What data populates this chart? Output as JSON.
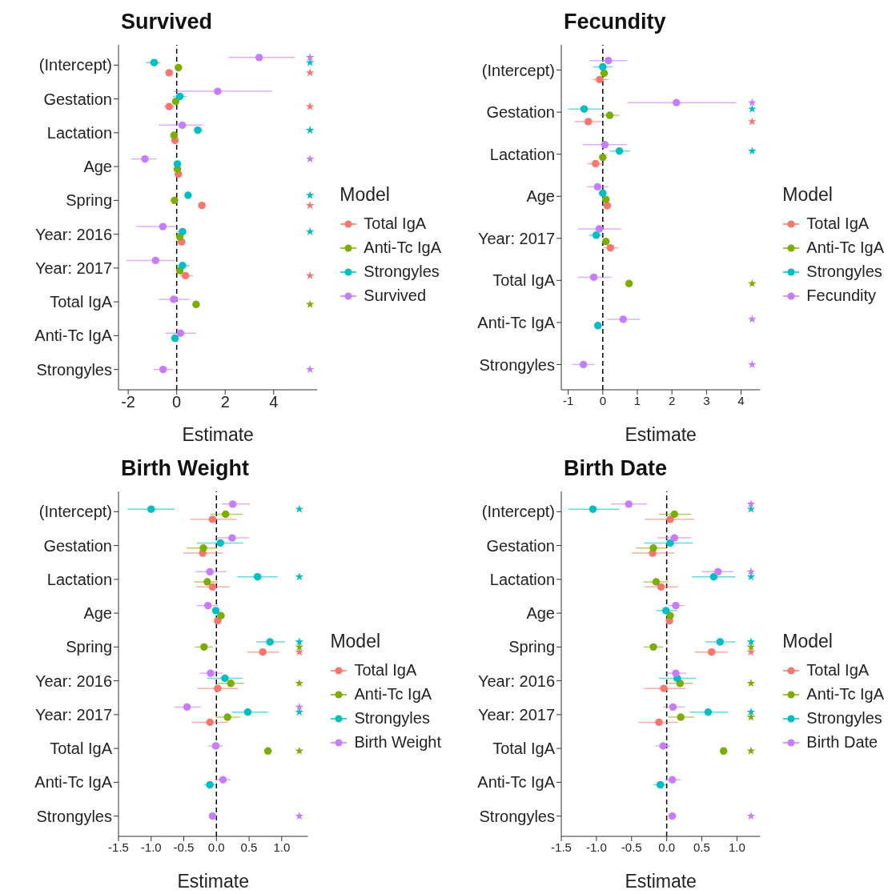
{
  "chart_data": [
    {
      "type": "scatter",
      "title": "Survived",
      "orientation": "horizontal",
      "xlabel": "Estimate",
      "legend_title": "Model",
      "legend": "right",
      "marker": "circle",
      "grid": false,
      "categories": [
        "(Intercept)",
        "Gestation",
        "Lactation",
        "Age",
        "Spring",
        "Year: 2016",
        "Year: 2017",
        "Total IgA",
        "Anti-Tc IgA",
        "Strongyles"
      ],
      "xlim": [
        -2.4,
        5.8
      ],
      "xticks": [
        -2,
        0,
        2,
        4
      ],
      "ref_lines": [
        {
          "axis": "x",
          "value": 0,
          "color": "#000000",
          "line_style": "dashed"
        }
      ],
      "series": [
        {
          "name": "Total IgA",
          "color": "#f8766d",
          "values": [
            -0.31,
            -0.31,
            -0.07,
            0.07,
            1.04,
            0.2,
            0.36,
            null,
            null,
            null
          ],
          "errors": [
            null,
            [
              -0.53,
              -0.07
            ],
            null,
            null,
            null,
            null,
            [
              0.13,
              0.67
            ],
            null,
            null,
            null
          ]
        },
        {
          "name": "Anti-Tc IgA",
          "color": "#7cae00",
          "values": [
            0.07,
            -0.04,
            -0.11,
            0.03,
            -0.09,
            0.13,
            0.13,
            0.8,
            null,
            null
          ]
        },
        {
          "name": "Strongyles",
          "color": "#00bfc4",
          "values": [
            -0.93,
            0.13,
            0.87,
            0.03,
            0.47,
            0.24,
            0.24,
            null,
            -0.07,
            null
          ],
          "errors": [
            [
              -1.27,
              -0.67
            ],
            [
              -0.16,
              0.4
            ],
            [
              0.73,
              1.07
            ],
            null,
            null,
            [
              0,
              0.4
            ],
            [
              0,
              0.53
            ],
            null,
            null,
            null
          ]
        },
        {
          "name": "Survived",
          "color": "#c77cff",
          "values": [
            3.4,
            1.69,
            0.23,
            -1.31,
            null,
            -0.57,
            -0.87,
            -0.13,
            0.16,
            -0.56
          ],
          "errors": [
            [
              2.13,
              4.87
            ],
            [
              -0.13,
              3.93
            ],
            [
              -0.73,
              1.09
            ],
            [
              -1.87,
              -0.83
            ],
            null,
            [
              -1.67,
              0
            ],
            [
              -2.07,
              -0.07
            ],
            [
              -0.73,
              0.53
            ],
            [
              -0.47,
              0.8
            ],
            [
              -0.96,
              -0.17
            ]
          ]
        },
        {
          "marker": "star",
          "color": "#f8766d",
          "values": [
            5.5,
            5.5,
            null,
            null,
            5.5,
            null,
            5.5,
            null,
            null,
            null
          ]
        },
        {
          "marker": "star",
          "color": "#7cae00",
          "values": [
            null,
            null,
            null,
            null,
            null,
            null,
            null,
            5.5,
            null,
            null
          ]
        },
        {
          "marker": "star",
          "color": "#00bfc4",
          "values": [
            5.5,
            null,
            5.5,
            null,
            5.5,
            5.5,
            null,
            null,
            null,
            null
          ]
        },
        {
          "marker": "star",
          "color": "#c77cff",
          "values": [
            5.5,
            null,
            null,
            5.5,
            null,
            null,
            null,
            null,
            null,
            5.5
          ]
        }
      ]
    },
    {
      "type": "scatter",
      "title": "Fecundity",
      "orientation": "horizontal",
      "xlabel": "Estimate",
      "legend_title": "Model",
      "legend": "right",
      "marker": "circle",
      "grid": false,
      "categories": [
        "(Intercept)",
        "Gestation",
        "Lactation",
        "Age",
        "Year: 2017",
        "Total IgA",
        "Anti-Tc IgA",
        "Strongyles"
      ],
      "xlim": [
        -1.2,
        4.55
      ],
      "xticks": [
        -1,
        0,
        1,
        2,
        3,
        4
      ],
      "ref_lines": [
        {
          "axis": "x",
          "value": 0,
          "color": "#000000",
          "line_style": "dashed"
        }
      ],
      "series": [
        {
          "name": "Total IgA",
          "color": "#f8766d",
          "values": [
            -0.09,
            -0.42,
            -0.21,
            0.13,
            0.22,
            null,
            null,
            null
          ],
          "errors": [
            [
              -0.31,
              0.16
            ],
            [
              -0.81,
              -0.03
            ],
            [
              -0.44,
              0.02
            ],
            null,
            [
              0.02,
              0.45
            ],
            null,
            null,
            null
          ]
        },
        {
          "name": "Anti-Tc IgA",
          "color": "#7cae00",
          "values": [
            0.04,
            0.2,
            0,
            0.09,
            0.09,
            0.76,
            null,
            null
          ],
          "errors": [
            null,
            [
              -0.07,
              0.48
            ],
            null,
            null,
            null,
            null,
            null,
            null
          ]
        },
        {
          "name": "Strongyles",
          "color": "#00bfc4",
          "values": [
            0,
            -0.54,
            0.48,
            0,
            -0.19,
            null,
            -0.14,
            null
          ],
          "errors": [
            [
              -0.28,
              0.28
            ],
            [
              -1,
              -0.03
            ],
            [
              0.2,
              0.78
            ],
            null,
            [
              -0.4,
              0
            ],
            null,
            null,
            null
          ]
        },
        {
          "name": "Fecundity",
          "color": "#c77cff",
          "values": [
            0.16,
            2.13,
            0.06,
            -0.15,
            -0.1,
            -0.26,
            0.59,
            -0.56
          ],
          "errors": [
            [
              -0.4,
              0.71
            ],
            [
              0.71,
              3.86
            ],
            [
              -0.58,
              0.69
            ],
            [
              -0.46,
              0.16
            ],
            [
              -0.72,
              0.53
            ],
            [
              -0.72,
              0.25
            ],
            [
              0.13,
              1.08
            ],
            [
              -0.89,
              -0.24
            ]
          ]
        },
        {
          "marker": "star",
          "color": "#f8766d",
          "values": [
            null,
            4.32,
            null,
            null,
            null,
            null,
            null,
            null
          ]
        },
        {
          "marker": "star",
          "color": "#7cae00",
          "values": [
            null,
            null,
            null,
            null,
            null,
            4.32,
            null,
            null
          ]
        },
        {
          "marker": "star",
          "color": "#00bfc4",
          "values": [
            null,
            4.32,
            4.32,
            null,
            null,
            null,
            null,
            null
          ]
        },
        {
          "marker": "star",
          "color": "#c77cff",
          "values": [
            null,
            4.32,
            null,
            null,
            null,
            null,
            4.32,
            4.32
          ]
        }
      ]
    },
    {
      "type": "scatter",
      "title": "Birth Weight",
      "orientation": "horizontal",
      "xlabel": "Estimate",
      "legend_title": "Model",
      "legend": "right",
      "marker": "circle",
      "grid": false,
      "categories": [
        "(Intercept)",
        "Gestation",
        "Lactation",
        "Age",
        "Spring",
        "Year: 2016",
        "Year: 2017",
        "Total IgA",
        "Anti-Tc IgA",
        "Strongyles"
      ],
      "xlim": [
        -1.5,
        1.4
      ],
      "xticks": [
        {
          "value": -1.5,
          "label": "-1.5"
        },
        {
          "value": -1,
          "label": "-1.0"
        },
        {
          "value": -0.5,
          "label": "-0.5"
        },
        {
          "value": 0,
          "label": "0.0"
        },
        {
          "value": 0.5,
          "label": "0.5"
        },
        {
          "value": 1,
          "label": "1.0"
        }
      ],
      "ref_lines": [
        {
          "axis": "x",
          "value": 0,
          "color": "#000000",
          "line_style": "dashed"
        }
      ],
      "series": [
        {
          "name": "Total IgA",
          "color": "#f8766d",
          "values": [
            -0.06,
            -0.21,
            -0.06,
            0.02,
            0.71,
            0.02,
            -0.1,
            null,
            null,
            null
          ],
          "errors": [
            [
              -0.4,
              0.31
            ],
            [
              -0.51,
              0.1
            ],
            [
              -0.31,
              0.2
            ],
            null,
            [
              0.47,
              0.96
            ],
            [
              -0.29,
              0.33
            ],
            [
              -0.38,
              0.18
            ],
            null,
            null,
            null
          ]
        },
        {
          "name": "Anti-Tc IgA",
          "color": "#7cae00",
          "values": [
            0.14,
            -0.2,
            -0.14,
            0.07,
            -0.19,
            0.22,
            0.17,
            0.79,
            null,
            null
          ],
          "errors": [
            [
              -0.09,
              0.4
            ],
            [
              -0.45,
              0.01
            ],
            [
              -0.34,
              0.02
            ],
            null,
            [
              -0.33,
              -0.05
            ],
            [
              0.02,
              0.42
            ],
            [
              -0.01,
              0.36
            ],
            null,
            null,
            null
          ]
        },
        {
          "name": "Strongyles",
          "color": "#00bfc4",
          "values": [
            -1,
            0.06,
            0.63,
            -0.01,
            0.82,
            0.13,
            0.48,
            null,
            -0.1,
            null
          ],
          "errors": [
            [
              -1.36,
              -0.64
            ],
            [
              -0.3,
              0.41
            ],
            [
              0.32,
              0.94
            ],
            null,
            [
              0.61,
              1.05
            ],
            [
              -0.14,
              0.4
            ],
            [
              0.24,
              0.79
            ],
            null,
            [
              -0.19,
              0
            ],
            null
          ]
        },
        {
          "name": "Birth Weight",
          "color": "#c77cff",
          "values": [
            0.25,
            0.24,
            -0.1,
            -0.13,
            null,
            -0.09,
            -0.45,
            -0.01,
            0.1,
            -0.06
          ],
          "errors": [
            [
              0.08,
              0.51
            ],
            [
              0,
              0.5
            ],
            [
              -0.32,
              0.15
            ],
            [
              -0.3,
              0.02
            ],
            null,
            [
              -0.25,
              0.1
            ],
            [
              -0.64,
              -0.24
            ],
            [
              -0.13,
              0.1
            ],
            [
              -0.02,
              0.22
            ],
            null
          ]
        },
        {
          "marker": "star",
          "color": "#f8766d",
          "values": [
            null,
            null,
            null,
            null,
            1.27,
            null,
            null,
            null,
            null,
            null
          ]
        },
        {
          "marker": "star",
          "color": "#7cae00",
          "values": [
            null,
            null,
            null,
            null,
            1.27,
            1.27,
            null,
            1.27,
            null,
            null
          ]
        },
        {
          "marker": "star",
          "color": "#00bfc4",
          "values": [
            1.27,
            null,
            1.27,
            null,
            1.27,
            null,
            1.27,
            null,
            null,
            null
          ]
        },
        {
          "marker": "star",
          "color": "#c77cff",
          "values": [
            null,
            null,
            null,
            null,
            null,
            null,
            1.27,
            null,
            null,
            1.27
          ]
        }
      ]
    },
    {
      "type": "scatter",
      "title": "Birth Date",
      "orientation": "horizontal",
      "xlabel": "Estimate",
      "legend_title": "Model",
      "legend": "right",
      "marker": "circle",
      "grid": false,
      "categories": [
        "(Intercept)",
        "Gestation",
        "Lactation",
        "Age",
        "Spring",
        "Year: 2016",
        "Year: 2017",
        "Total IgA",
        "Anti-Tc IgA",
        "Strongyles"
      ],
      "xlim": [
        -1.5,
        1.33
      ],
      "xticks": [
        {
          "value": -1.5,
          "label": "-1.5"
        },
        {
          "value": -1,
          "label": "-1.0"
        },
        {
          "value": -0.5,
          "label": "-0.5"
        },
        {
          "value": 0,
          "label": "0.0"
        },
        {
          "value": 0.5,
          "label": "0.5"
        },
        {
          "value": 1,
          "label": "1.0"
        }
      ],
      "ref_lines": [
        {
          "axis": "x",
          "value": 0,
          "color": "#000000",
          "line_style": "dashed"
        }
      ],
      "series": [
        {
          "name": "Total IgA",
          "color": "#f8766d",
          "values": [
            0.05,
            -0.2,
            -0.08,
            0.04,
            0.64,
            -0.04,
            -0.11,
            null,
            null,
            null
          ],
          "errors": [
            [
              -0.31,
              0.39
            ],
            [
              -0.5,
              0.11
            ],
            [
              -0.32,
              0.16
            ],
            null,
            [
              0.4,
              0.87
            ],
            [
              -0.32,
              0.27
            ],
            [
              -0.4,
              0.16
            ],
            null,
            null,
            null
          ]
        },
        {
          "name": "Anti-Tc IgA",
          "color": "#7cae00",
          "values": [
            0.11,
            -0.19,
            -0.15,
            0.05,
            -0.19,
            0.19,
            0.2,
            0.81,
            null,
            null
          ],
          "errors": [
            [
              -0.11,
              0.35
            ],
            [
              -0.43,
              0
            ],
            [
              -0.33,
              0.02
            ],
            null,
            [
              -0.33,
              -0.05
            ],
            [
              0.02,
              0.37
            ],
            [
              0.02,
              0.39
            ],
            null,
            null,
            null
          ]
        },
        {
          "name": "Strongyles",
          "color": "#00bfc4",
          "values": [
            -1.05,
            0.05,
            0.67,
            -0.01,
            0.76,
            0.15,
            0.59,
            null,
            -0.09,
            null
          ],
          "errors": [
            [
              -1.4,
              -0.68
            ],
            [
              -0.32,
              0.37
            ],
            [
              0.36,
              0.98
            ],
            [
              -0.15,
              0.15
            ],
            [
              0.55,
              0.98
            ],
            [
              -0.11,
              0.42
            ],
            [
              0.33,
              0.87
            ],
            null,
            [
              -0.19,
              0
            ],
            null
          ]
        },
        {
          "name": "Birth Date",
          "color": "#c77cff",
          "values": [
            -0.54,
            0.11,
            0.73,
            0.13,
            null,
            0.13,
            0.09,
            -0.05,
            0.08,
            0.08
          ],
          "errors": [
            [
              -0.79,
              -0.28
            ],
            [
              -0.13,
              0.35
            ],
            [
              0.5,
              0.95
            ],
            [
              0.02,
              0.25
            ],
            null,
            [
              0,
              0.28
            ],
            [
              -0.05,
              0.26
            ],
            [
              -0.16,
              0.05
            ],
            [
              -0.02,
              0.2
            ],
            null
          ]
        },
        {
          "marker": "star",
          "color": "#f8766d",
          "values": [
            null,
            null,
            null,
            null,
            1.2,
            null,
            null,
            null,
            null,
            null
          ]
        },
        {
          "marker": "star",
          "color": "#7cae00",
          "values": [
            null,
            null,
            null,
            null,
            1.2,
            1.2,
            1.2,
            1.2,
            null,
            null
          ]
        },
        {
          "marker": "star",
          "color": "#00bfc4",
          "values": [
            1.2,
            null,
            1.2,
            null,
            1.2,
            null,
            1.2,
            null,
            null,
            null
          ]
        },
        {
          "marker": "star",
          "color": "#c77cff",
          "values": [
            1.2,
            null,
            1.2,
            null,
            null,
            null,
            null,
            null,
            null,
            1.2
          ]
        }
      ]
    }
  ]
}
